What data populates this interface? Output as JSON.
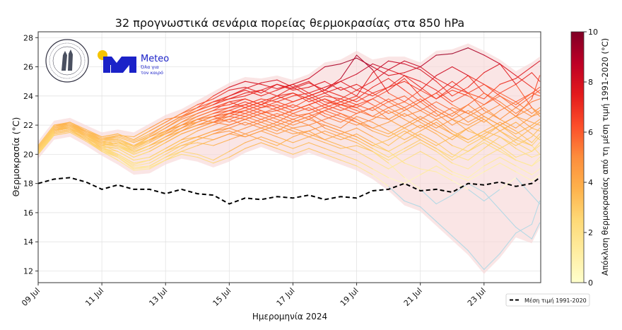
{
  "chart_data": {
    "type": "line",
    "title": "32 προγνωστικά σενάρια πορείας θερμοκρασίας στα 850 hPa",
    "xlabel": "Ημερομηνία 2024",
    "ylabel": "Θερμοκρασία (°C)",
    "xlim_day_of_july": [
      9,
      24.78
    ],
    "ylim": [
      11.2,
      28.4
    ],
    "grid": true,
    "x_ticks": [
      {
        "day": 9,
        "label": "09 Jul"
      },
      {
        "day": 11,
        "label": "11 Jul"
      },
      {
        "day": 13,
        "label": "13 Jul"
      },
      {
        "day": 15,
        "label": "15 Jul"
      },
      {
        "day": 17,
        "label": "17 Jul"
      },
      {
        "day": 19,
        "label": "19 Jul"
      },
      {
        "day": 21,
        "label": "21 Jul"
      },
      {
        "day": 23,
        "label": "23 Jul"
      }
    ],
    "y_ticks": [
      12,
      14,
      16,
      18,
      20,
      22,
      24,
      26,
      28
    ],
    "x_day_of_july": [
      9,
      9.5,
      10,
      10.5,
      11,
      11.5,
      12,
      12.5,
      13,
      13.5,
      14,
      14.5,
      15,
      15.5,
      16,
      16.5,
      17,
      17.5,
      18,
      18.5,
      19,
      19.5,
      20,
      20.5,
      21,
      21.5,
      22,
      22.5,
      23,
      23.5,
      24,
      24.5,
      24.75
    ],
    "climatology": {
      "name": "Μέση τιμή 1991-2020",
      "values": [
        18.0,
        18.3,
        18.4,
        18.1,
        17.6,
        17.9,
        17.6,
        17.6,
        17.3,
        17.6,
        17.3,
        17.2,
        16.6,
        17.0,
        16.9,
        17.1,
        17.0,
        17.2,
        16.9,
        17.1,
        17.0,
        17.5,
        17.6,
        18.0,
        17.5,
        17.6,
        17.4,
        18.0,
        17.9,
        18.1,
        17.8,
        18.0,
        18.4
      ]
    },
    "members": [
      [
        20.5,
        21.8,
        22.0,
        21.6,
        21.2,
        21.4,
        21.0,
        21.6,
        22.2,
        22.8,
        23.4,
        23.8,
        24.4,
        24.6,
        24.2,
        24.8,
        24.5,
        24.9,
        24.4,
        25.0,
        25.5,
        26.2,
        25.8,
        26.4,
        26.0,
        26.8,
        26.9,
        27.3,
        26.8,
        26.2,
        25.4,
        24.6,
        24.2
      ],
      [
        20.4,
        21.9,
        22.1,
        21.5,
        21.0,
        21.2,
        20.8,
        21.3,
        22.0,
        22.6,
        23.2,
        24.0,
        24.6,
        25.0,
        24.8,
        24.5,
        24.8,
        25.2,
        26.0,
        26.2,
        26.6,
        26.0,
        25.4,
        25.6,
        26.0,
        25.2,
        24.6,
        24.2,
        23.8,
        24.8,
        25.2,
        26.0,
        26.4
      ],
      [
        20.3,
        21.7,
        21.9,
        21.4,
        20.9,
        21.0,
        20.5,
        21.2,
        21.8,
        22.5,
        23.0,
        23.4,
        24.0,
        24.5,
        24.9,
        25.1,
        24.6,
        24.0,
        24.4,
        25.2,
        26.8,
        25.8,
        24.2,
        23.6,
        24.4,
        25.4,
        26.0,
        25.4,
        24.8,
        24.2,
        23.6,
        24.2,
        24.0
      ],
      [
        20.6,
        22.0,
        22.1,
        21.6,
        21.0,
        21.3,
        21.2,
        21.8,
        22.4,
        22.6,
        23.0,
        23.6,
        23.8,
        24.2,
        24.4,
        24.0,
        24.6,
        25.0,
        24.2,
        24.6,
        24.0,
        25.6,
        26.4,
        26.2,
        25.8,
        25.0,
        24.0,
        24.6,
        25.6,
        26.2,
        24.8,
        23.2,
        22.8
      ],
      [
        20.2,
        21.6,
        21.8,
        21.2,
        20.6,
        20.8,
        20.4,
        21.0,
        21.6,
        22.2,
        22.6,
        23.0,
        23.6,
        23.8,
        23.4,
        24.0,
        24.2,
        23.6,
        24.0,
        23.8,
        24.4,
        25.0,
        25.8,
        25.4,
        24.6,
        23.8,
        24.6,
        25.4,
        24.2,
        23.4,
        22.6,
        23.8,
        25.4
      ],
      [
        20.4,
        21.8,
        22.0,
        21.4,
        21.0,
        21.1,
        20.6,
        21.0,
        21.4,
        21.8,
        22.4,
        22.8,
        23.2,
        23.4,
        23.8,
        23.6,
        24.0,
        24.2,
        23.6,
        23.4,
        23.8,
        24.6,
        25.2,
        24.4,
        23.6,
        24.2,
        25.0,
        24.2,
        23.0,
        22.4,
        23.2,
        24.0,
        24.4
      ],
      [
        20.1,
        21.5,
        21.7,
        21.3,
        20.8,
        20.9,
        20.2,
        20.6,
        21.2,
        21.6,
        22.2,
        22.6,
        23.0,
        22.8,
        23.2,
        23.6,
        23.2,
        23.8,
        24.2,
        23.6,
        23.2,
        23.8,
        24.4,
        25.2,
        24.0,
        23.2,
        22.6,
        23.4,
        24.2,
        23.6,
        22.8,
        23.6,
        23.8
      ],
      [
        20.5,
        21.9,
        22.2,
        21.6,
        21.1,
        21.2,
        20.8,
        21.2,
        21.6,
        22.0,
        22.2,
        22.6,
        22.8,
        23.2,
        22.8,
        23.0,
        23.4,
        23.0,
        23.4,
        23.8,
        23.4,
        23.0,
        23.6,
        24.0,
        23.2,
        22.6,
        23.2,
        22.8,
        22.2,
        23.0,
        23.6,
        22.8,
        23.2
      ],
      [
        20.3,
        21.6,
        21.9,
        21.4,
        20.7,
        20.5,
        20.0,
        20.4,
        21.0,
        21.6,
        22.0,
        22.4,
        22.6,
        22.4,
        22.8,
        23.2,
        22.8,
        22.4,
        23.0,
        23.4,
        23.2,
        22.6,
        22.4,
        23.0,
        23.6,
        22.8,
        22.0,
        22.6,
        23.2,
        22.4,
        21.8,
        22.6,
        22.8
      ],
      [
        20.2,
        21.7,
        21.8,
        21.2,
        20.6,
        20.4,
        19.8,
        20.2,
        20.8,
        21.4,
        21.8,
        22.2,
        22.8,
        23.0,
        22.6,
        22.2,
        22.8,
        23.2,
        22.6,
        22.2,
        22.8,
        23.2,
        22.4,
        21.8,
        22.4,
        23.0,
        22.4,
        21.6,
        21.2,
        22.0,
        22.6,
        22.2,
        22.0
      ],
      [
        20.4,
        21.8,
        22.0,
        21.5,
        20.9,
        20.7,
        20.2,
        20.6,
        21.2,
        21.8,
        22.4,
        22.2,
        22.6,
        23.0,
        23.4,
        23.0,
        22.6,
        22.8,
        23.2,
        22.8,
        22.4,
        21.8,
        22.2,
        22.8,
        22.2,
        21.6,
        21.0,
        21.8,
        22.4,
        21.6,
        21.0,
        21.8,
        21.6
      ],
      [
        20.0,
        21.4,
        21.6,
        21.0,
        20.4,
        20.2,
        19.6,
        19.8,
        20.4,
        21.0,
        21.6,
        22.0,
        22.4,
        22.8,
        22.4,
        22.0,
        22.4,
        22.8,
        22.2,
        21.8,
        22.6,
        22.2,
        21.6,
        21.0,
        21.6,
        22.2,
        21.4,
        20.8,
        21.4,
        22.0,
        21.2,
        20.6,
        21.2
      ],
      [
        20.3,
        21.6,
        21.8,
        21.2,
        20.5,
        20.0,
        19.4,
        19.6,
        20.2,
        20.8,
        21.2,
        21.6,
        22.0,
        22.4,
        22.0,
        21.6,
        22.2,
        22.6,
        21.8,
        21.4,
        21.8,
        21.2,
        20.6,
        21.4,
        22.0,
        21.4,
        20.6,
        20.2,
        21.0,
        21.6,
        20.8,
        20.2,
        20.6
      ],
      [
        20.2,
        21.5,
        21.7,
        21.1,
        20.3,
        19.8,
        19.0,
        19.2,
        19.8,
        20.4,
        21.0,
        21.4,
        21.8,
        22.2,
        21.8,
        21.4,
        21.8,
        22.0,
        21.4,
        21.0,
        21.4,
        20.8,
        20.2,
        20.8,
        21.4,
        20.8,
        20.0,
        19.6,
        20.4,
        21.2,
        20.4,
        19.8,
        20.0
      ],
      [
        20.4,
        21.7,
        21.9,
        21.3,
        20.6,
        20.2,
        19.6,
        19.8,
        20.4,
        21.0,
        21.2,
        21.0,
        21.4,
        21.8,
        22.2,
        21.8,
        21.4,
        21.6,
        22.0,
        21.6,
        21.2,
        20.6,
        21.0,
        21.6,
        21.0,
        20.4,
        19.8,
        20.6,
        21.2,
        20.6,
        19.8,
        20.2,
        20.8
      ],
      [
        20.1,
        21.4,
        21.6,
        21.0,
        20.2,
        19.6,
        18.9,
        19.0,
        19.6,
        20.2,
        20.6,
        21.0,
        21.4,
        21.2,
        21.6,
        22.0,
        21.6,
        21.2,
        21.6,
        21.2,
        20.8,
        20.2,
        19.6,
        20.2,
        20.8,
        20.2,
        19.4,
        19.0,
        19.8,
        20.4,
        19.6,
        19.2,
        19.6
      ],
      [
        20.3,
        21.6,
        21.8,
        21.2,
        20.4,
        19.9,
        19.2,
        19.4,
        20.0,
        20.6,
        20.8,
        20.6,
        21.0,
        21.4,
        21.0,
        20.6,
        21.2,
        21.6,
        21.0,
        20.6,
        20.2,
        19.6,
        19.0,
        19.6,
        20.2,
        19.6,
        18.8,
        18.4,
        19.2,
        19.8,
        19.2,
        18.6,
        19.0
      ],
      [
        20.0,
        21.3,
        21.5,
        20.9,
        20.2,
        19.8,
        19.1,
        19.2,
        19.8,
        20.2,
        20.0,
        19.6,
        20.2,
        20.8,
        21.2,
        20.8,
        20.4,
        20.8,
        20.4,
        20.0,
        19.6,
        19.0,
        18.4,
        18.0,
        18.6,
        19.2,
        18.6,
        18.2,
        18.8,
        19.4,
        18.8,
        18.2,
        18.6
      ],
      [
        20.2,
        21.5,
        21.7,
        21.0,
        20.3,
        19.8,
        19.0,
        19.1,
        19.6,
        20.0,
        19.8,
        19.4,
        19.8,
        20.4,
        20.8,
        20.4,
        20.0,
        20.4,
        20.0,
        19.6,
        19.2,
        18.6,
        17.8,
        16.8,
        16.4,
        15.4,
        14.4,
        13.4,
        12.1,
        13.2,
        14.6,
        15.2,
        16.8
      ],
      [
        20.3,
        21.6,
        21.8,
        21.2,
        20.4,
        20.0,
        19.4,
        19.6,
        20.2,
        20.6,
        21.0,
        21.4,
        21.6,
        21.2,
        21.6,
        21.2,
        20.8,
        21.2,
        20.8,
        20.4,
        20.6,
        20.2,
        19.4,
        18.4,
        17.6,
        16.6,
        17.2,
        18.0,
        17.4,
        16.2,
        15.0,
        14.2,
        15.3
      ],
      [
        20.4,
        21.7,
        22.0,
        21.4,
        20.8,
        20.6,
        20.0,
        20.4,
        21.0,
        21.6,
        22.0,
        22.2,
        22.0,
        22.4,
        22.8,
        22.4,
        22.0,
        22.4,
        22.0,
        21.6,
        21.2,
        20.6,
        20.2,
        19.4,
        19.0,
        18.8,
        18.2,
        17.6,
        16.8,
        17.6,
        18.4,
        17.2,
        16.6
      ],
      [
        20.5,
        21.8,
        22.1,
        21.5,
        21.0,
        21.0,
        20.6,
        21.0,
        21.4,
        22.0,
        22.4,
        22.6,
        22.8,
        23.2,
        23.6,
        23.2,
        23.6,
        24.0,
        23.4,
        23.0,
        23.4,
        23.8,
        23.2,
        22.6,
        23.0,
        23.6,
        23.0,
        22.2,
        22.8,
        23.4,
        22.6,
        21.8,
        22.2
      ],
      [
        20.3,
        21.7,
        21.9,
        21.3,
        20.8,
        20.9,
        20.4,
        20.9,
        21.5,
        22.2,
        22.8,
        23.2,
        23.4,
        23.8,
        23.4,
        23.8,
        24.2,
        23.8,
        23.2,
        23.6,
        24.0,
        23.4,
        22.8,
        23.2,
        23.8,
        23.0,
        22.4,
        22.0,
        22.6,
        22.0,
        21.4,
        22.0,
        22.4
      ],
      [
        20.2,
        21.6,
        21.8,
        21.3,
        20.7,
        20.8,
        20.3,
        20.8,
        21.4,
        22.0,
        22.4,
        22.8,
        23.0,
        23.4,
        23.0,
        22.6,
        23.0,
        23.4,
        23.8,
        23.2,
        22.8,
        23.2,
        23.8,
        23.2,
        22.4,
        21.8,
        22.4,
        23.0,
        22.4,
        21.6,
        22.2,
        21.4,
        21.0
      ],
      [
        20.4,
        21.8,
        22.0,
        21.4,
        20.8,
        20.6,
        20.1,
        20.6,
        21.2,
        21.8,
        22.2,
        22.6,
        22.2,
        22.6,
        23.0,
        22.6,
        23.0,
        23.4,
        22.8,
        22.4,
        22.0,
        22.4,
        23.0,
        22.4,
        21.8,
        22.4,
        21.6,
        21.0,
        21.6,
        22.2,
        21.6,
        20.8,
        21.4
      ],
      [
        20.3,
        21.7,
        21.9,
        21.3,
        20.7,
        20.6,
        20.2,
        20.6,
        21.0,
        21.6,
        22.0,
        22.4,
        22.8,
        22.6,
        22.2,
        22.6,
        22.2,
        22.6,
        23.0,
        22.6,
        22.2,
        21.6,
        21.2,
        21.8,
        21.2,
        20.6,
        21.2,
        21.8,
        21.0,
        20.4,
        21.0,
        20.6,
        20.0
      ],
      [
        20.6,
        22.0,
        22.2,
        21.7,
        21.2,
        21.4,
        21.0,
        21.6,
        22.2,
        22.8,
        23.2,
        23.6,
        24.0,
        24.4,
        24.0,
        24.4,
        24.8,
        24.2,
        24.6,
        25.0,
        24.4,
        24.0,
        24.6,
        25.0,
        24.4,
        23.8,
        24.4,
        24.0,
        23.4,
        24.2,
        24.8,
        25.6,
        25.0
      ],
      [
        20.5,
        21.9,
        22.1,
        21.6,
        21.1,
        21.3,
        20.9,
        21.4,
        22.0,
        22.6,
        23.0,
        23.4,
        23.8,
        24.0,
        24.4,
        24.8,
        24.4,
        24.6,
        25.0,
        24.4,
        24.8,
        24.2,
        24.6,
        25.4,
        25.0,
        24.4,
        23.6,
        24.2,
        24.8,
        24.0,
        23.4,
        24.2,
        24.6
      ],
      [
        20.2,
        21.6,
        21.8,
        21.2,
        20.6,
        20.8,
        20.6,
        21.2,
        21.8,
        22.4,
        22.8,
        23.2,
        23.6,
        23.2,
        23.6,
        24.0,
        23.6,
        24.0,
        24.4,
        24.0,
        23.6,
        24.2,
        23.6,
        23.0,
        23.6,
        24.2,
        23.4,
        22.8,
        23.4,
        24.0,
        23.2,
        22.6,
        23.0
      ],
      [
        20.4,
        21.8,
        22.0,
        21.4,
        20.9,
        21.0,
        20.5,
        21.0,
        21.6,
        22.0,
        22.6,
        23.0,
        23.2,
        23.6,
        23.2,
        23.4,
        23.0,
        23.4,
        23.8,
        23.4,
        23.0,
        22.6,
        23.2,
        23.6,
        23.0,
        22.4,
        22.8,
        23.4,
        22.6,
        22.0,
        22.6,
        23.2,
        22.6
      ],
      [
        20.1,
        21.5,
        21.7,
        21.1,
        20.5,
        20.4,
        19.8,
        20.2,
        20.8,
        21.4,
        21.8,
        22.2,
        22.4,
        22.0,
        22.4,
        22.8,
        22.4,
        22.0,
        22.4,
        22.8,
        22.2,
        21.8,
        21.4,
        22.0,
        22.6,
        22.0,
        21.4,
        21.0,
        21.6,
        21.2,
        20.6,
        21.2,
        21.8
      ],
      [
        20.0,
        21.4,
        21.6,
        21.0,
        20.3,
        19.9,
        19.3,
        19.6,
        20.2,
        20.8,
        21.2,
        21.6,
        21.8,
        21.4,
        21.8,
        22.2,
        21.8,
        21.4,
        21.0,
        21.4,
        21.0,
        20.4,
        19.8,
        20.4,
        21.0,
        20.4,
        19.6,
        20.2,
        20.8,
        20.2,
        19.6,
        19.2,
        19.8
      ]
    ],
    "colorbar": {
      "label": "Απόκλιση θερμοκρασίας από τη μέση τιμή 1991-2020 (°C)",
      "range": [
        0,
        10
      ],
      "ticks": [
        0,
        2,
        4,
        6,
        8,
        10
      ],
      "colormap": "YlOrRd",
      "colormap_stops": [
        "#ffffcc",
        "#ffeda0",
        "#fed976",
        "#feb24c",
        "#fd8d3c",
        "#fc4e2a",
        "#e31a1c",
        "#bd0026",
        "#800026"
      ]
    },
    "negative_anomaly_color": "#add8e6",
    "envelope_color": "#f8d7d7",
    "legend": {
      "placement": "lower-right outside",
      "entries": [
        {
          "label": "Μέση τιμή 1991-2020",
          "style": "black dashed"
        }
      ]
    }
  },
  "logos": {
    "meteo": {
      "name": "Meteo",
      "tagline_1": "Όλα για",
      "tagline_2": "τον καιρό",
      "brand_color": "#1b22c8",
      "sun_color": "#f5c400"
    },
    "seal": {
      "text": "ΕΘΝΙΚΟΝ ΑΣΤΕΡΟΣΚΟΠΕΙΟΝ ΑΘΗΝΩΝ · NATIONAL OBSERVATORY ATHENS"
    }
  }
}
